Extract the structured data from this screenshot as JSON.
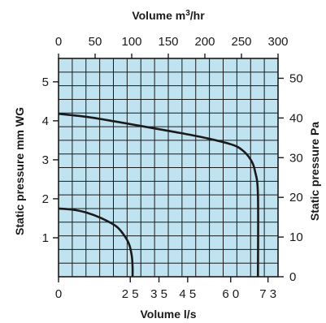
{
  "chart_data": {
    "type": "line",
    "background_color": "#bfe3f0",
    "grid": true,
    "grid_color": "#1a1a1a",
    "line_color": "#1a1a1a",
    "axes": {
      "bottom": {
        "label": "Volume l/s",
        "range": [
          0,
          76.5
        ],
        "ticks": [
          0,
          25,
          35,
          45,
          60,
          73
        ],
        "tick_labels": [
          "0",
          "2 5",
          "3 5",
          "4 5",
          "6 0",
          "7 3"
        ]
      },
      "top": {
        "label_prefix": "Volume m",
        "label_sup": "3",
        "label_suffix": "/hr",
        "range": [
          0,
          300
        ],
        "ticks": [
          0,
          50,
          100,
          150,
          200,
          250,
          300
        ],
        "tick_labels": [
          "0",
          "50",
          "100",
          "150",
          "200",
          "250",
          "300"
        ]
      },
      "left": {
        "label": "Static pressure mm WG",
        "range": [
          0,
          5.6
        ],
        "ticks": [
          1,
          2,
          3,
          4,
          5
        ],
        "tick_labels": [
          "1",
          "2",
          "3",
          "4",
          "5"
        ]
      },
      "right": {
        "label": "Static pressure Pa",
        "range": [
          0,
          55
        ],
        "ticks": [
          0,
          10,
          20,
          30,
          40,
          50
        ],
        "tick_labels": [
          "0",
          "10",
          "20",
          "30",
          "40",
          "50"
        ]
      }
    },
    "series": [
      {
        "x": [
          0,
          10,
          20,
          30,
          40,
          50,
          60,
          64,
          67,
          68.5,
          69.5,
          69.5
        ],
        "y": [
          4.18,
          4.1,
          3.98,
          3.85,
          3.72,
          3.58,
          3.4,
          3.25,
          3.0,
          2.7,
          2.1,
          0
        ]
      },
      {
        "x": [
          0,
          5,
          10,
          15,
          20,
          22.5,
          24.5,
          25.5,
          25.8,
          25.8
        ],
        "y": [
          1.75,
          1.72,
          1.64,
          1.5,
          1.3,
          1.1,
          0.85,
          0.55,
          0.25,
          0
        ]
      }
    ]
  }
}
